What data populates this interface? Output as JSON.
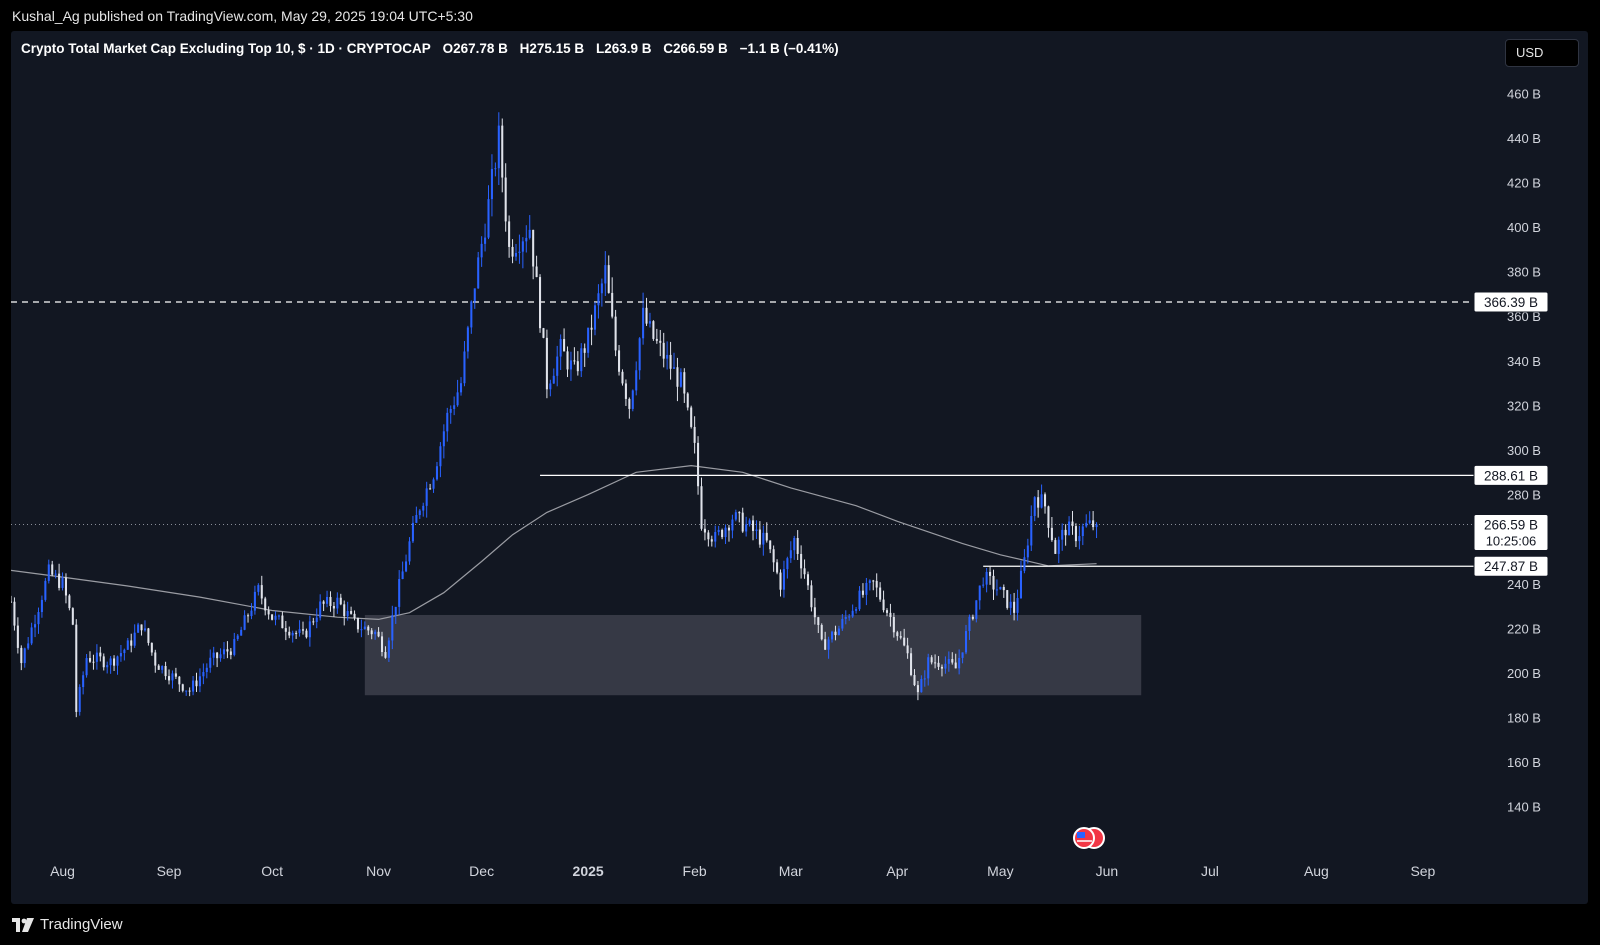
{
  "header": {
    "publish_text": "Kushal_Ag published on TradingView.com, May 29, 2025 19:04 UTC+5:30"
  },
  "symbol_bar": {
    "title": "Crypto Total Market Cap Excluding Top 10, $ · 1D · CRYPTOCAP",
    "open": "O267.78 B",
    "high": "H275.15 B",
    "low": "L263.9 B",
    "close": "C266.59 B",
    "change": "−1.1 B (−0.41%)"
  },
  "currency_button": {
    "label": "USD"
  },
  "footer": {
    "brand": "TradingView",
    "logo_icon": "tradingview-logo-icon"
  },
  "colors": {
    "background": "#121722",
    "up_candle": "#2962ff",
    "down_candle": "#e0e3eb",
    "moving_average": "#9a9ca3",
    "zone": "#434651"
  },
  "chart_data": {
    "type": "candlestick",
    "title": "Crypto Total Market Cap Excluding Top 10, $ · 1D · CRYPTOCAP",
    "interval": "1D",
    "unit": "B",
    "ylim": [
      130,
      470
    ],
    "y_ticks": [
      "460 B",
      "440 B",
      "420 B",
      "400 B",
      "380 B",
      "360 B",
      "340 B",
      "320 B",
      "300 B",
      "280 B",
      "240 B",
      "220 B",
      "200 B",
      "180 B",
      "160 B",
      "140 B"
    ],
    "y_tick_values": [
      460,
      440,
      420,
      400,
      380,
      360,
      340,
      320,
      300,
      280,
      240,
      220,
      200,
      180,
      160,
      140
    ],
    "x_ticks": [
      {
        "label": "Aug",
        "date": "2024-08-01",
        "bold": false
      },
      {
        "label": "Sep",
        "date": "2024-09-01",
        "bold": false
      },
      {
        "label": "Oct",
        "date": "2024-10-01",
        "bold": false
      },
      {
        "label": "Nov",
        "date": "2024-11-01",
        "bold": false
      },
      {
        "label": "Dec",
        "date": "2024-12-01",
        "bold": false
      },
      {
        "label": "2025",
        "date": "2025-01-01",
        "bold": true
      },
      {
        "label": "Feb",
        "date": "2025-02-01",
        "bold": false
      },
      {
        "label": "Mar",
        "date": "2025-03-01",
        "bold": false
      },
      {
        "label": "Apr",
        "date": "2025-04-01",
        "bold": false
      },
      {
        "label": "May",
        "date": "2025-05-01",
        "bold": false
      },
      {
        "label": "Jun",
        "date": "2025-06-01",
        "bold": false
      },
      {
        "label": "Jul",
        "date": "2025-07-01",
        "bold": false
      },
      {
        "label": "Aug",
        "date": "2025-08-01",
        "bold": false
      },
      {
        "label": "Sep",
        "date": "2025-09-01",
        "bold": false
      }
    ],
    "x_range": [
      "2024-07-17",
      "2025-09-30"
    ],
    "last_close": {
      "value": 266.59,
      "label": "266.59 B",
      "countdown": "10:25:06"
    },
    "horizontal_lines": [
      {
        "value": 366.39,
        "label": "366.39 B",
        "style": "dashed",
        "from": null,
        "to": null
      },
      {
        "value": 288.61,
        "label": "288.61 B",
        "style": "solid",
        "from": "2024-12-18",
        "to": null
      },
      {
        "value": 247.87,
        "label": "247.87 B",
        "style": "solid",
        "from": "2025-04-26",
        "to": null
      }
    ],
    "zones": [
      {
        "from": "2024-10-28",
        "to": "2025-06-11",
        "y_low": 190,
        "y_high": 226
      }
    ],
    "moving_average": {
      "points": [
        [
          "2024-07-17",
          246
        ],
        [
          "2024-08-01",
          243
        ],
        [
          "2024-08-20",
          239
        ],
        [
          "2024-09-10",
          234
        ],
        [
          "2024-10-01",
          228
        ],
        [
          "2024-10-20",
          225
        ],
        [
          "2024-11-01",
          224
        ],
        [
          "2024-11-10",
          227
        ],
        [
          "2024-11-20",
          236
        ],
        [
          "2024-12-01",
          250
        ],
        [
          "2024-12-10",
          262
        ],
        [
          "2024-12-20",
          272
        ],
        [
          "2025-01-01",
          280
        ],
        [
          "2025-01-15",
          290
        ],
        [
          "2025-01-31",
          293
        ],
        [
          "2025-02-15",
          290
        ],
        [
          "2025-03-01",
          283
        ],
        [
          "2025-03-20",
          275
        ],
        [
          "2025-04-01",
          268
        ],
        [
          "2025-04-20",
          258
        ],
        [
          "2025-05-01",
          253
        ],
        [
          "2025-05-15",
          248
        ],
        [
          "2025-05-29",
          249
        ]
      ]
    },
    "price_path": [
      [
        "2024-07-17",
        232
      ],
      [
        "2024-07-20",
        205
      ],
      [
        "2024-07-24",
        225
      ],
      [
        "2024-07-28",
        245
      ],
      [
        "2024-08-01",
        240
      ],
      [
        "2024-08-04",
        222
      ],
      [
        "2024-08-05",
        183
      ],
      [
        "2024-08-08",
        207
      ],
      [
        "2024-08-15",
        205
      ],
      [
        "2024-08-20",
        212
      ],
      [
        "2024-08-24",
        222
      ],
      [
        "2024-08-28",
        205
      ],
      [
        "2024-09-03",
        197
      ],
      [
        "2024-09-07",
        192
      ],
      [
        "2024-09-13",
        205
      ],
      [
        "2024-09-20",
        212
      ],
      [
        "2024-09-27",
        237
      ],
      [
        "2024-10-01",
        225
      ],
      [
        "2024-10-06",
        220
      ],
      [
        "2024-10-10",
        216
      ],
      [
        "2024-10-15",
        230
      ],
      [
        "2024-10-20",
        232
      ],
      [
        "2024-10-25",
        222
      ],
      [
        "2024-10-31",
        218
      ],
      [
        "2024-11-03",
        210
      ],
      [
        "2024-11-06",
        232
      ],
      [
        "2024-11-10",
        258
      ],
      [
        "2024-11-13",
        275
      ],
      [
        "2024-11-17",
        290
      ],
      [
        "2024-11-21",
        315
      ],
      [
        "2024-11-25",
        330
      ],
      [
        "2024-11-29",
        375
      ],
      [
        "2024-12-03",
        410
      ],
      [
        "2024-12-06",
        440
      ],
      [
        "2024-12-09",
        390
      ],
      [
        "2024-12-12",
        395
      ],
      [
        "2024-12-15",
        400
      ],
      [
        "2024-12-18",
        360
      ],
      [
        "2024-12-20",
        330
      ],
      [
        "2024-12-24",
        345
      ],
      [
        "2024-12-28",
        335
      ],
      [
        "2025-01-01",
        350
      ],
      [
        "2025-01-06",
        380
      ],
      [
        "2025-01-09",
        345
      ],
      [
        "2025-01-13",
        320
      ],
      [
        "2025-01-17",
        360
      ],
      [
        "2025-01-20",
        350
      ],
      [
        "2025-01-24",
        340
      ],
      [
        "2025-01-28",
        330
      ],
      [
        "2025-02-01",
        300
      ],
      [
        "2025-02-03",
        268
      ],
      [
        "2025-02-07",
        260
      ],
      [
        "2025-02-12",
        270
      ],
      [
        "2025-02-17",
        265
      ],
      [
        "2025-02-22",
        258
      ],
      [
        "2025-02-26",
        240
      ],
      [
        "2025-03-02",
        260
      ],
      [
        "2025-03-05",
        245
      ],
      [
        "2025-03-10",
        212
      ],
      [
        "2025-03-15",
        220
      ],
      [
        "2025-03-20",
        232
      ],
      [
        "2025-03-25",
        240
      ],
      [
        "2025-03-30",
        225
      ],
      [
        "2025-04-04",
        208
      ],
      [
        "2025-04-07",
        190
      ],
      [
        "2025-04-10",
        205
      ],
      [
        "2025-04-14",
        205
      ],
      [
        "2025-04-18",
        202
      ],
      [
        "2025-04-22",
        222
      ],
      [
        "2025-04-26",
        243
      ],
      [
        "2025-04-30",
        238
      ],
      [
        "2025-05-05",
        228
      ],
      [
        "2025-05-08",
        250
      ],
      [
        "2025-05-11",
        280
      ],
      [
        "2025-05-14",
        275
      ],
      [
        "2025-05-17",
        255
      ],
      [
        "2025-05-20",
        265
      ],
      [
        "2025-05-23",
        262
      ],
      [
        "2025-05-26",
        266
      ],
      [
        "2025-05-29",
        266.59
      ]
    ]
  }
}
